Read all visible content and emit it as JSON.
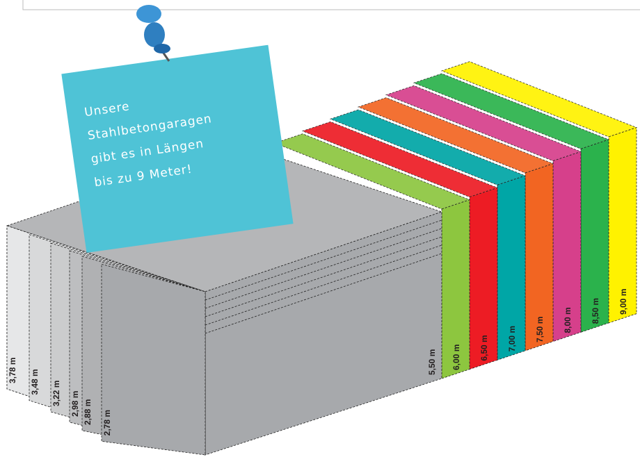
{
  "note": {
    "lines": [
      "Unsere",
      "Stahlbetongaragen",
      "gibt es in Längen",
      "bis zu 9 Meter!"
    ]
  },
  "widths": [
    {
      "label": "3,78 m"
    },
    {
      "label": "3,48 m"
    },
    {
      "label": "3,22 m"
    },
    {
      "label": "2,98 m"
    },
    {
      "label": "2,88 m"
    },
    {
      "label": "2,78 m"
    }
  ],
  "lengths": [
    {
      "label": "5,50 m",
      "color": "#a7a9ac"
    },
    {
      "label": "6,00 m",
      "color": "#8dc63f"
    },
    {
      "label": "6,50 m",
      "color": "#ed1c24"
    },
    {
      "label": "7,00 m",
      "color": "#00a6a6"
    },
    {
      "label": "7,50 m",
      "color": "#f26522"
    },
    {
      "label": "8,00 m",
      "color": "#d6408b"
    },
    {
      "label": "8,50 m",
      "color": "#2bb24c"
    },
    {
      "label": "9,00 m",
      "color": "#fff200"
    }
  ]
}
